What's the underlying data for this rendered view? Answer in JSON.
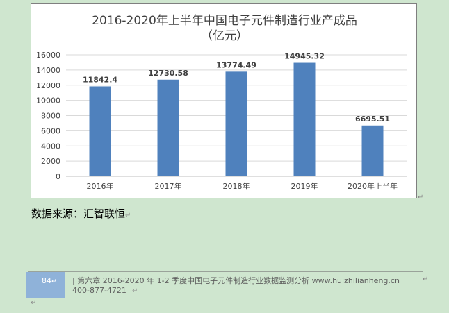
{
  "chart_data": {
    "type": "bar",
    "title": "2016-2020年上半年中国电子元件制造行业产成品",
    "subtitle": "（亿元）",
    "categories": [
      "2016年",
      "2017年",
      "2018年",
      "2019年",
      "2020年上半年"
    ],
    "values": [
      11842.4,
      12730.58,
      13774.49,
      14945.32,
      6695.51
    ],
    "value_labels": [
      "11842.4",
      "12730.58",
      "13774.49",
      "14945.32",
      "6695.51"
    ],
    "yticks": [
      "0",
      "2000",
      "4000",
      "6000",
      "8000",
      "10000",
      "12000",
      "14000",
      "16000"
    ],
    "ylim": [
      0,
      16000
    ],
    "grid": true,
    "legend": "none",
    "bar_color": "#4f81bd"
  },
  "source_label": "数据来源：汇智联恒",
  "footer": {
    "page_number": "84",
    "text": "| 第六章 2016-2020 年 1-2 季度中国电子元件制造行业数据监测分析 www.huizhilianheng.cn",
    "phone": "400-877-4721"
  },
  "colors": {
    "background": "#cfe6cf",
    "bar": "#4f81bd",
    "grid": "#d9d9d9"
  }
}
